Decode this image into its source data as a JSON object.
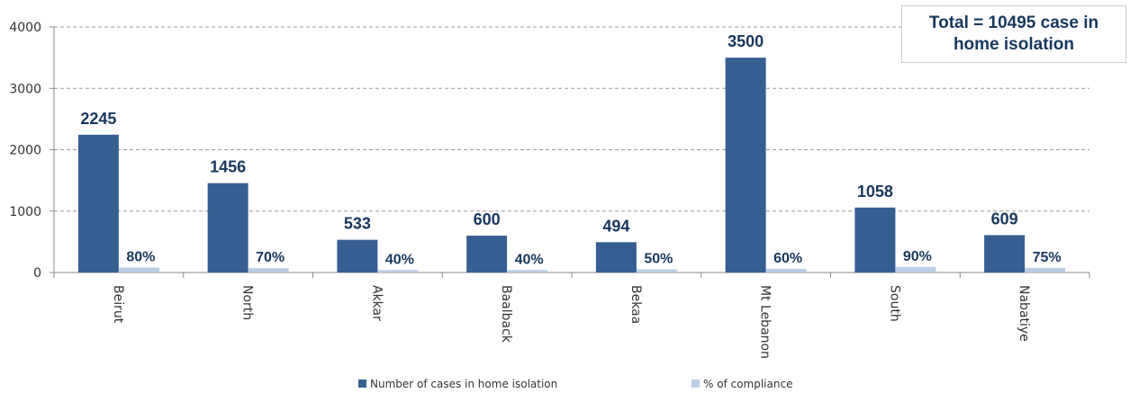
{
  "chart_data": {
    "type": "bar",
    "annotation": "Total = 10495 case in home isolation",
    "categories": [
      "Beirut",
      "North",
      "Akkar",
      "Baalback",
      "Bekaa",
      "Mt Lebanon",
      "South",
      "Nabatiye"
    ],
    "series": [
      {
        "name": "Number of cases in home isolation",
        "color": "#365f91",
        "values": [
          2245,
          1456,
          533,
          600,
          494,
          3500,
          1058,
          609
        ]
      },
      {
        "name": "% of compliance",
        "color": "#b9cde5",
        "values": [
          80,
          70,
          40,
          40,
          50,
          60,
          90,
          75
        ],
        "value_labels": [
          "80%",
          "70%",
          "40%",
          "40%",
          "50%",
          "60%",
          "90%",
          "75%"
        ]
      }
    ],
    "ylim": [
      0,
      4000
    ],
    "yticks": [
      0,
      1000,
      2000,
      3000,
      4000
    ],
    "grid": true,
    "legend": "bottom"
  }
}
